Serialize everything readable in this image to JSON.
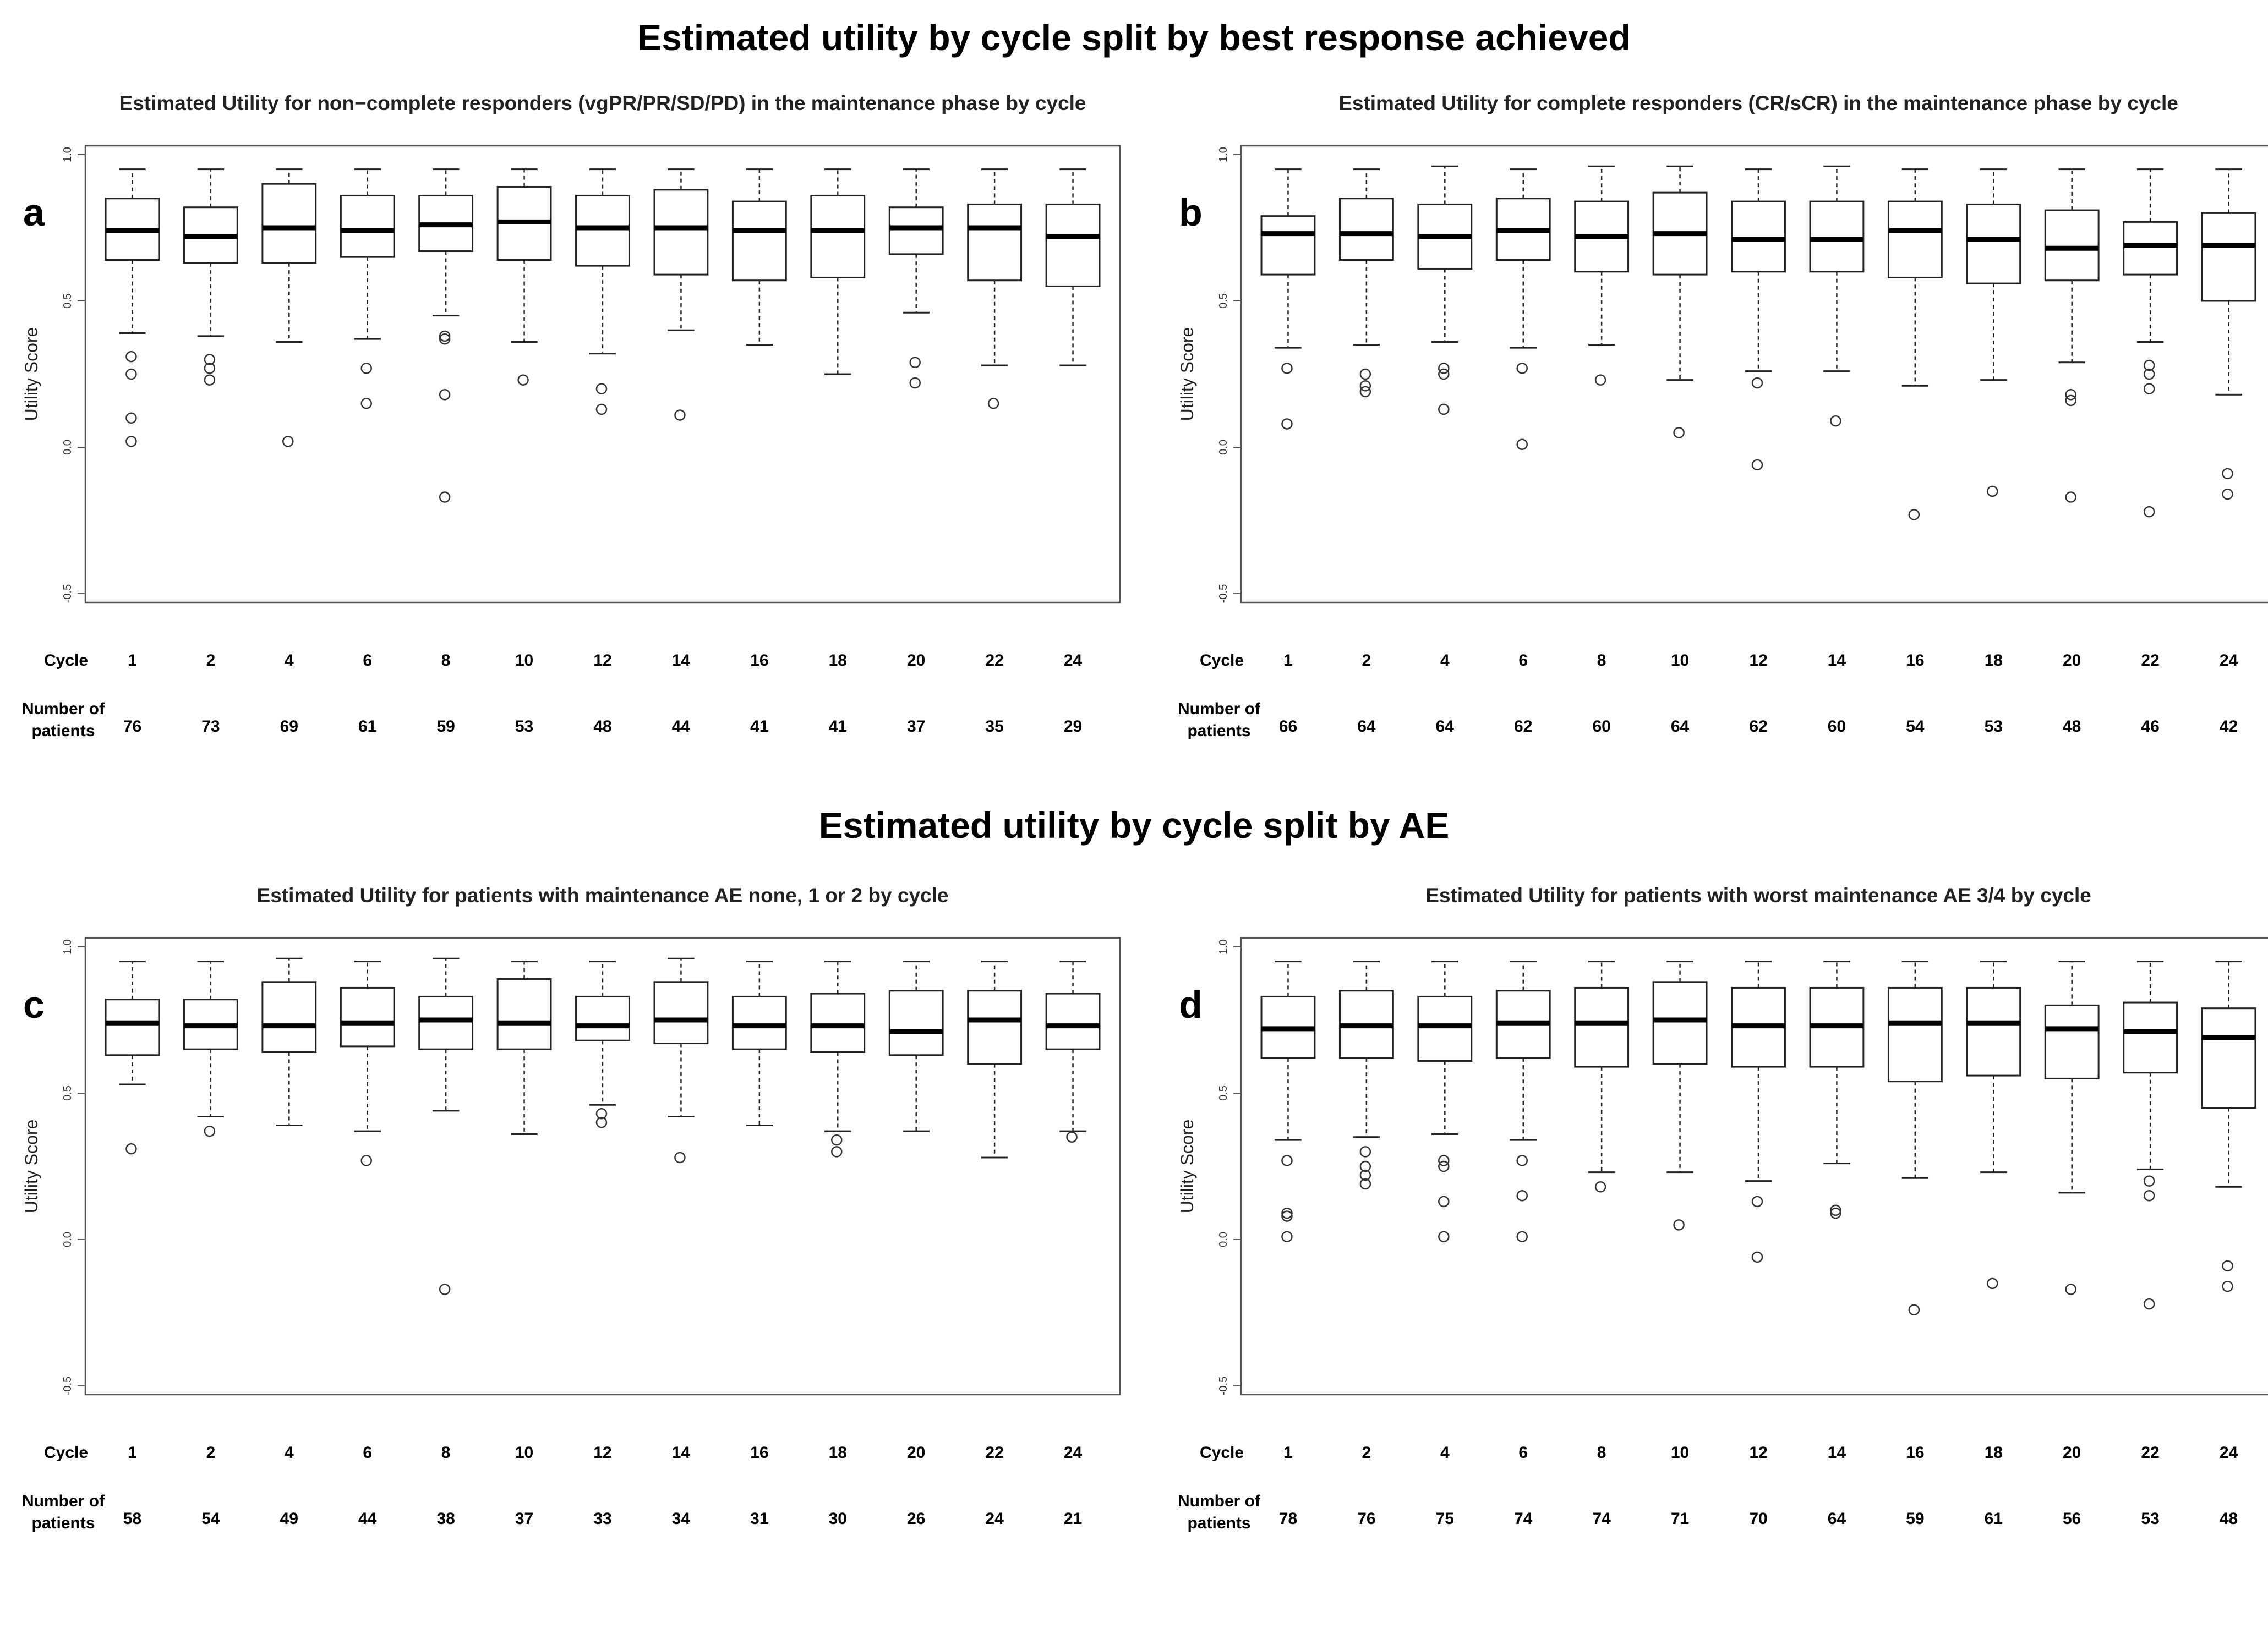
{
  "section_titles": {
    "top": "Estimated utility by cycle split by best response achieved",
    "bottom": "Estimated utility by cycle split by AE"
  },
  "chart_data": [
    {
      "panel": "a",
      "type": "boxplot",
      "title": "Estimated Utility for non−complete responders (vgPR/PR/SD/PD) in the maintenance phase by cycle",
      "ylabel": "Utility Score",
      "ylim": [
        -0.5,
        1.0
      ],
      "yticks": [
        "-0.5",
        "0.0",
        "0.5",
        "1.0"
      ],
      "cycle_label": "Cycle",
      "patients_label": [
        "Number of",
        "patients"
      ],
      "categories": [
        "1",
        "2",
        "4",
        "6",
        "8",
        "10",
        "12",
        "14",
        "16",
        "18",
        "20",
        "22",
        "24"
      ],
      "n_patients": [
        "76",
        "73",
        "69",
        "61",
        "59",
        "53",
        "48",
        "44",
        "41",
        "41",
        "37",
        "35",
        "29"
      ],
      "boxes": [
        {
          "whislo": 0.39,
          "q1": 0.64,
          "med": 0.74,
          "q3": 0.85,
          "whishi": 0.95,
          "fliers": [
            0.31,
            0.25,
            0.1,
            0.02
          ]
        },
        {
          "whislo": 0.38,
          "q1": 0.63,
          "med": 0.72,
          "q3": 0.82,
          "whishi": 0.95,
          "fliers": [
            0.3,
            0.27,
            0.23
          ]
        },
        {
          "whislo": 0.36,
          "q1": 0.63,
          "med": 0.75,
          "q3": 0.9,
          "whishi": 0.95,
          "fliers": [
            0.02
          ]
        },
        {
          "whislo": 0.37,
          "q1": 0.65,
          "med": 0.74,
          "q3": 0.86,
          "whishi": 0.95,
          "fliers": [
            0.27,
            0.15
          ]
        },
        {
          "whislo": 0.45,
          "q1": 0.67,
          "med": 0.76,
          "q3": 0.86,
          "whishi": 0.95,
          "fliers": [
            0.38,
            0.37,
            0.18,
            -0.17
          ]
        },
        {
          "whislo": 0.36,
          "q1": 0.64,
          "med": 0.77,
          "q3": 0.89,
          "whishi": 0.95,
          "fliers": [
            0.23
          ]
        },
        {
          "whislo": 0.32,
          "q1": 0.62,
          "med": 0.75,
          "q3": 0.86,
          "whishi": 0.95,
          "fliers": [
            0.2,
            0.13
          ]
        },
        {
          "whislo": 0.4,
          "q1": 0.59,
          "med": 0.75,
          "q3": 0.88,
          "whishi": 0.95,
          "fliers": [
            0.11
          ]
        },
        {
          "whislo": 0.35,
          "q1": 0.57,
          "med": 0.74,
          "q3": 0.84,
          "whishi": 0.95,
          "fliers": []
        },
        {
          "whislo": 0.25,
          "q1": 0.58,
          "med": 0.74,
          "q3": 0.86,
          "whishi": 0.95,
          "fliers": []
        },
        {
          "whislo": 0.46,
          "q1": 0.66,
          "med": 0.75,
          "q3": 0.82,
          "whishi": 0.95,
          "fliers": [
            0.29,
            0.22
          ]
        },
        {
          "whislo": 0.28,
          "q1": 0.57,
          "med": 0.75,
          "q3": 0.83,
          "whishi": 0.95,
          "fliers": [
            0.15
          ]
        },
        {
          "whislo": 0.28,
          "q1": 0.55,
          "med": 0.72,
          "q3": 0.83,
          "whishi": 0.95,
          "fliers": []
        }
      ]
    },
    {
      "panel": "b",
      "type": "boxplot",
      "title": "Estimated Utility for complete responders (CR/sCR) in the maintenance phase by cycle",
      "ylabel": "Utility Score",
      "ylim": [
        -0.5,
        1.0
      ],
      "yticks": [
        "-0.5",
        "0.0",
        "0.5",
        "1.0"
      ],
      "cycle_label": "Cycle",
      "patients_label": [
        "Number of",
        "patients"
      ],
      "categories": [
        "1",
        "2",
        "4",
        "6",
        "8",
        "10",
        "12",
        "14",
        "16",
        "18",
        "20",
        "22",
        "24"
      ],
      "n_patients": [
        "66",
        "64",
        "64",
        "62",
        "60",
        "64",
        "62",
        "60",
        "54",
        "53",
        "48",
        "46",
        "42"
      ],
      "boxes": [
        {
          "whislo": 0.34,
          "q1": 0.59,
          "med": 0.73,
          "q3": 0.79,
          "whishi": 0.95,
          "fliers": [
            0.27,
            0.08
          ]
        },
        {
          "whislo": 0.35,
          "q1": 0.64,
          "med": 0.73,
          "q3": 0.85,
          "whishi": 0.95,
          "fliers": [
            0.25,
            0.21,
            0.19
          ]
        },
        {
          "whislo": 0.36,
          "q1": 0.61,
          "med": 0.72,
          "q3": 0.83,
          "whishi": 0.96,
          "fliers": [
            0.27,
            0.25,
            0.13
          ]
        },
        {
          "whislo": 0.34,
          "q1": 0.64,
          "med": 0.74,
          "q3": 0.85,
          "whishi": 0.95,
          "fliers": [
            0.27,
            0.01
          ]
        },
        {
          "whislo": 0.35,
          "q1": 0.6,
          "med": 0.72,
          "q3": 0.84,
          "whishi": 0.96,
          "fliers": [
            0.23
          ]
        },
        {
          "whislo": 0.23,
          "q1": 0.59,
          "med": 0.73,
          "q3": 0.87,
          "whishi": 0.96,
          "fliers": [
            0.05
          ]
        },
        {
          "whislo": 0.26,
          "q1": 0.6,
          "med": 0.71,
          "q3": 0.84,
          "whishi": 0.95,
          "fliers": [
            0.22,
            -0.06
          ]
        },
        {
          "whislo": 0.26,
          "q1": 0.6,
          "med": 0.71,
          "q3": 0.84,
          "whishi": 0.96,
          "fliers": [
            0.09
          ]
        },
        {
          "whislo": 0.21,
          "q1": 0.58,
          "med": 0.74,
          "q3": 0.84,
          "whishi": 0.95,
          "fliers": [
            -0.23
          ]
        },
        {
          "whislo": 0.23,
          "q1": 0.56,
          "med": 0.71,
          "q3": 0.83,
          "whishi": 0.95,
          "fliers": [
            -0.15
          ]
        },
        {
          "whislo": 0.29,
          "q1": 0.57,
          "med": 0.68,
          "q3": 0.81,
          "whishi": 0.95,
          "fliers": [
            0.18,
            0.16,
            -0.17
          ]
        },
        {
          "whislo": 0.36,
          "q1": 0.59,
          "med": 0.69,
          "q3": 0.77,
          "whishi": 0.95,
          "fliers": [
            0.28,
            0.25,
            0.2,
            -0.22
          ]
        },
        {
          "whislo": 0.18,
          "q1": 0.5,
          "med": 0.69,
          "q3": 0.8,
          "whishi": 0.95,
          "fliers": [
            -0.09,
            -0.16
          ]
        }
      ]
    },
    {
      "panel": "c",
      "type": "boxplot",
      "title": "Estimated Utility for patients with maintenance AE none, 1 or 2 by cycle",
      "ylabel": "Utility Score",
      "ylim": [
        -0.5,
        1.0
      ],
      "yticks": [
        "-0.5",
        "0.0",
        "0.5",
        "1.0"
      ],
      "cycle_label": "Cycle",
      "patients_label": [
        "Number of",
        "patients"
      ],
      "categories": [
        "1",
        "2",
        "4",
        "6",
        "8",
        "10",
        "12",
        "14",
        "16",
        "18",
        "20",
        "22",
        "24"
      ],
      "n_patients": [
        "58",
        "54",
        "49",
        "44",
        "38",
        "37",
        "33",
        "34",
        "31",
        "30",
        "26",
        "24",
        "21"
      ],
      "boxes": [
        {
          "whislo": 0.53,
          "q1": 0.63,
          "med": 0.74,
          "q3": 0.82,
          "whishi": 0.95,
          "fliers": [
            0.31
          ]
        },
        {
          "whislo": 0.42,
          "q1": 0.65,
          "med": 0.73,
          "q3": 0.82,
          "whishi": 0.95,
          "fliers": [
            0.37
          ]
        },
        {
          "whislo": 0.39,
          "q1": 0.64,
          "med": 0.73,
          "q3": 0.88,
          "whishi": 0.96,
          "fliers": []
        },
        {
          "whislo": 0.37,
          "q1": 0.66,
          "med": 0.74,
          "q3": 0.86,
          "whishi": 0.95,
          "fliers": [
            0.27
          ]
        },
        {
          "whislo": 0.44,
          "q1": 0.65,
          "med": 0.75,
          "q3": 0.83,
          "whishi": 0.96,
          "fliers": [
            -0.17
          ]
        },
        {
          "whislo": 0.36,
          "q1": 0.65,
          "med": 0.74,
          "q3": 0.89,
          "whishi": 0.95,
          "fliers": []
        },
        {
          "whislo": 0.46,
          "q1": 0.68,
          "med": 0.73,
          "q3": 0.83,
          "whishi": 0.95,
          "fliers": [
            0.43,
            0.4
          ]
        },
        {
          "whislo": 0.42,
          "q1": 0.67,
          "med": 0.75,
          "q3": 0.88,
          "whishi": 0.96,
          "fliers": [
            0.28
          ]
        },
        {
          "whislo": 0.39,
          "q1": 0.65,
          "med": 0.73,
          "q3": 0.83,
          "whishi": 0.95,
          "fliers": []
        },
        {
          "whislo": 0.37,
          "q1": 0.64,
          "med": 0.73,
          "q3": 0.84,
          "whishi": 0.95,
          "fliers": [
            0.34,
            0.3
          ]
        },
        {
          "whislo": 0.37,
          "q1": 0.63,
          "med": 0.71,
          "q3": 0.85,
          "whishi": 0.95,
          "fliers": []
        },
        {
          "whislo": 0.28,
          "q1": 0.6,
          "med": 0.75,
          "q3": 0.85,
          "whishi": 0.95,
          "fliers": []
        },
        {
          "whislo": 0.37,
          "q1": 0.65,
          "med": 0.73,
          "q3": 0.84,
          "whishi": 0.95,
          "fliers": [
            0.35
          ]
        }
      ]
    },
    {
      "panel": "d",
      "type": "boxplot",
      "title": "Estimated Utility for patients with worst maintenance AE 3/4 by cycle",
      "ylabel": "Utility Score",
      "ylim": [
        -0.5,
        1.0
      ],
      "yticks": [
        "-0.5",
        "0.0",
        "0.5",
        "1.0"
      ],
      "cycle_label": "Cycle",
      "patients_label": [
        "Number of",
        "patients"
      ],
      "categories": [
        "1",
        "2",
        "4",
        "6",
        "8",
        "10",
        "12",
        "14",
        "16",
        "18",
        "20",
        "22",
        "24"
      ],
      "n_patients": [
        "78",
        "76",
        "75",
        "74",
        "74",
        "71",
        "70",
        "64",
        "59",
        "61",
        "56",
        "53",
        "48"
      ],
      "boxes": [
        {
          "whislo": 0.34,
          "q1": 0.62,
          "med": 0.72,
          "q3": 0.83,
          "whishi": 0.95,
          "fliers": [
            0.27,
            0.09,
            0.08,
            0.01
          ]
        },
        {
          "whislo": 0.35,
          "q1": 0.62,
          "med": 0.73,
          "q3": 0.85,
          "whishi": 0.95,
          "fliers": [
            0.3,
            0.25,
            0.22,
            0.19
          ]
        },
        {
          "whislo": 0.36,
          "q1": 0.61,
          "med": 0.73,
          "q3": 0.83,
          "whishi": 0.95,
          "fliers": [
            0.27,
            0.25,
            0.13,
            0.01
          ]
        },
        {
          "whislo": 0.34,
          "q1": 0.62,
          "med": 0.74,
          "q3": 0.85,
          "whishi": 0.95,
          "fliers": [
            0.27,
            0.15,
            0.01
          ]
        },
        {
          "whislo": 0.23,
          "q1": 0.59,
          "med": 0.74,
          "q3": 0.86,
          "whishi": 0.95,
          "fliers": [
            0.18
          ]
        },
        {
          "whislo": 0.23,
          "q1": 0.6,
          "med": 0.75,
          "q3": 0.88,
          "whishi": 0.95,
          "fliers": [
            0.05
          ]
        },
        {
          "whislo": 0.2,
          "q1": 0.59,
          "med": 0.73,
          "q3": 0.86,
          "whishi": 0.95,
          "fliers": [
            0.13,
            -0.06
          ]
        },
        {
          "whislo": 0.26,
          "q1": 0.59,
          "med": 0.73,
          "q3": 0.86,
          "whishi": 0.95,
          "fliers": [
            0.1,
            0.09
          ]
        },
        {
          "whislo": 0.21,
          "q1": 0.54,
          "med": 0.74,
          "q3": 0.86,
          "whishi": 0.95,
          "fliers": [
            -0.24
          ]
        },
        {
          "whislo": 0.23,
          "q1": 0.56,
          "med": 0.74,
          "q3": 0.86,
          "whishi": 0.95,
          "fliers": [
            -0.15
          ]
        },
        {
          "whislo": 0.16,
          "q1": 0.55,
          "med": 0.72,
          "q3": 0.8,
          "whishi": 0.95,
          "fliers": [
            -0.17
          ]
        },
        {
          "whislo": 0.24,
          "q1": 0.57,
          "med": 0.71,
          "q3": 0.81,
          "whishi": 0.95,
          "fliers": [
            0.2,
            0.15,
            -0.22
          ]
        },
        {
          "whislo": 0.18,
          "q1": 0.45,
          "med": 0.69,
          "q3": 0.79,
          "whishi": 0.95,
          "fliers": [
            -0.09,
            -0.16
          ]
        }
      ]
    }
  ]
}
